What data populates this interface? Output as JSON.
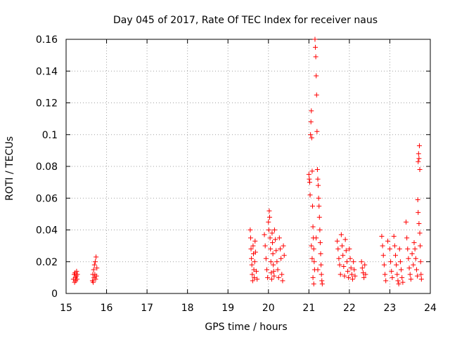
{
  "chart_data": {
    "type": "scatter",
    "title": "Day 045 of 2017, Rate Of TEC Index for receiver naus",
    "xlabel": "GPS time / hours",
    "ylabel": "ROTI / TECUs",
    "xlim": [
      15,
      24
    ],
    "ylim": [
      0,
      0.16
    ],
    "xticks": [
      "15",
      "16",
      "17",
      "18",
      "19",
      "20",
      "21",
      "22",
      "23",
      "24"
    ],
    "yticks": [
      "0",
      "0.02",
      "0.04",
      "0.06",
      "0.08",
      "0.1",
      "0.12",
      "0.14",
      "0.16"
    ],
    "grid": true,
    "marker": "+",
    "color": "#ff0000",
    "series": [
      {
        "name": "ROTI",
        "points": [
          [
            15.18,
            0.009
          ],
          [
            15.2,
            0.012
          ],
          [
            15.21,
            0.007
          ],
          [
            15.22,
            0.013
          ],
          [
            15.23,
            0.01
          ],
          [
            15.24,
            0.008
          ],
          [
            15.25,
            0.011
          ],
          [
            15.26,
            0.014
          ],
          [
            15.27,
            0.009
          ],
          [
            15.28,
            0.012
          ],
          [
            15.65,
            0.008
          ],
          [
            15.66,
            0.012
          ],
          [
            15.67,
            0.007
          ],
          [
            15.68,
            0.015
          ],
          [
            15.69,
            0.01
          ],
          [
            15.7,
            0.018
          ],
          [
            15.71,
            0.012
          ],
          [
            15.72,
            0.02
          ],
          [
            15.73,
            0.009
          ],
          [
            15.74,
            0.023
          ],
          [
            15.75,
            0.011
          ],
          [
            15.76,
            0.016
          ],
          [
            19.55,
            0.04
          ],
          [
            19.56,
            0.035
          ],
          [
            19.57,
            0.028
          ],
          [
            19.58,
            0.022
          ],
          [
            19.59,
            0.018
          ],
          [
            19.6,
            0.012
          ],
          [
            19.61,
            0.008
          ],
          [
            19.62,
            0.03
          ],
          [
            19.63,
            0.025
          ],
          [
            19.64,
            0.015
          ],
          [
            19.65,
            0.01
          ],
          [
            19.66,
            0.02
          ],
          [
            19.67,
            0.033
          ],
          [
            19.68,
            0.026
          ],
          [
            19.7,
            0.014
          ],
          [
            19.72,
            0.009
          ],
          [
            19.9,
            0.037
          ],
          [
            19.92,
            0.03
          ],
          [
            19.94,
            0.022
          ],
          [
            19.96,
            0.015
          ],
          [
            19.98,
            0.01
          ],
          [
            20.0,
            0.045
          ],
          [
            20.01,
            0.04
          ],
          [
            20.02,
            0.052
          ],
          [
            20.03,
            0.048
          ],
          [
            20.04,
            0.035
          ],
          [
            20.05,
            0.028
          ],
          [
            20.06,
            0.02
          ],
          [
            20.07,
            0.013
          ],
          [
            20.08,
            0.009
          ],
          [
            20.09,
            0.038
          ],
          [
            20.1,
            0.032
          ],
          [
            20.11,
            0.025
          ],
          [
            20.12,
            0.018
          ],
          [
            20.13,
            0.014
          ],
          [
            20.14,
            0.011
          ],
          [
            20.15,
            0.04
          ],
          [
            20.17,
            0.034
          ],
          [
            20.19,
            0.027
          ],
          [
            20.21,
            0.02
          ],
          [
            20.23,
            0.015
          ],
          [
            20.25,
            0.01
          ],
          [
            20.27,
            0.035
          ],
          [
            20.29,
            0.028
          ],
          [
            20.31,
            0.022
          ],
          [
            20.33,
            0.012
          ],
          [
            20.35,
            0.008
          ],
          [
            20.37,
            0.03
          ],
          [
            20.39,
            0.024
          ],
          [
            21.0,
            0.075
          ],
          [
            21.01,
            0.072
          ],
          [
            21.02,
            0.07
          ],
          [
            21.03,
            0.062
          ],
          [
            21.04,
            0.1
          ],
          [
            21.05,
            0.108
          ],
          [
            21.06,
            0.115
          ],
          [
            21.07,
            0.098
          ],
          [
            21.08,
            0.077
          ],
          [
            21.09,
            0.055
          ],
          [
            21.1,
            0.042
          ],
          [
            21.11,
            0.035
          ],
          [
            21.12,
            0.028
          ],
          [
            21.13,
            0.02
          ],
          [
            21.14,
            0.015
          ],
          [
            21.15,
            0.16
          ],
          [
            21.16,
            0.155
          ],
          [
            21.17,
            0.149
          ],
          [
            21.18,
            0.137
          ],
          [
            21.19,
            0.125
          ],
          [
            21.2,
            0.102
          ],
          [
            21.21,
            0.078
          ],
          [
            21.22,
            0.072
          ],
          [
            21.23,
            0.068
          ],
          [
            21.24,
            0.06
          ],
          [
            21.25,
            0.055
          ],
          [
            21.26,
            0.048
          ],
          [
            21.27,
            0.04
          ],
          [
            21.28,
            0.032
          ],
          [
            21.29,
            0.025
          ],
          [
            21.3,
            0.018
          ],
          [
            21.31,
            0.012
          ],
          [
            21.32,
            0.008
          ],
          [
            21.33,
            0.006
          ],
          [
            21.06,
            0.03
          ],
          [
            21.08,
            0.022
          ],
          [
            21.1,
            0.01
          ],
          [
            21.12,
            0.006
          ],
          [
            21.18,
            0.035
          ],
          [
            21.22,
            0.015
          ],
          [
            21.7,
            0.033
          ],
          [
            21.72,
            0.028
          ],
          [
            21.74,
            0.022
          ],
          [
            21.76,
            0.018
          ],
          [
            21.78,
            0.012
          ],
          [
            21.8,
            0.037
          ],
          [
            21.82,
            0.03
          ],
          [
            21.84,
            0.024
          ],
          [
            21.86,
            0.017
          ],
          [
            21.88,
            0.011
          ],
          [
            21.9,
            0.034
          ],
          [
            21.92,
            0.027
          ],
          [
            21.94,
            0.02
          ],
          [
            21.96,
            0.014
          ],
          [
            21.98,
            0.01
          ],
          [
            22.0,
            0.028
          ],
          [
            22.02,
            0.022
          ],
          [
            22.04,
            0.016
          ],
          [
            22.06,
            0.012
          ],
          [
            22.08,
            0.009
          ],
          [
            22.1,
            0.02
          ],
          [
            22.12,
            0.015
          ],
          [
            22.14,
            0.011
          ],
          [
            22.3,
            0.02
          ],
          [
            22.32,
            0.016
          ],
          [
            22.34,
            0.013
          ],
          [
            22.36,
            0.01
          ],
          [
            22.38,
            0.018
          ],
          [
            22.4,
            0.012
          ],
          [
            22.8,
            0.036
          ],
          [
            22.82,
            0.03
          ],
          [
            22.84,
            0.024
          ],
          [
            22.86,
            0.018
          ],
          [
            22.88,
            0.012
          ],
          [
            22.9,
            0.008
          ],
          [
            22.95,
            0.033
          ],
          [
            23.0,
            0.028
          ],
          [
            23.02,
            0.02
          ],
          [
            23.04,
            0.014
          ],
          [
            23.06,
            0.01
          ],
          [
            23.1,
            0.036
          ],
          [
            23.12,
            0.03
          ],
          [
            23.14,
            0.024
          ],
          [
            23.16,
            0.018
          ],
          [
            23.18,
            0.012
          ],
          [
            23.2,
            0.008
          ],
          [
            23.22,
            0.006
          ],
          [
            23.24,
            0.028
          ],
          [
            23.26,
            0.02
          ],
          [
            23.28,
            0.015
          ],
          [
            23.3,
            0.01
          ],
          [
            23.32,
            0.007
          ],
          [
            23.4,
            0.045
          ],
          [
            23.42,
            0.035
          ],
          [
            23.44,
            0.028
          ],
          [
            23.46,
            0.022
          ],
          [
            23.48,
            0.016
          ],
          [
            23.5,
            0.012
          ],
          [
            23.52,
            0.009
          ],
          [
            23.55,
            0.025
          ],
          [
            23.58,
            0.018
          ],
          [
            23.6,
            0.032
          ],
          [
            23.62,
            0.028
          ],
          [
            23.64,
            0.022
          ],
          [
            23.66,
            0.015
          ],
          [
            23.68,
            0.011
          ],
          [
            23.7,
            0.083
          ],
          [
            23.71,
            0.088
          ],
          [
            23.72,
            0.085
          ],
          [
            23.73,
            0.093
          ],
          [
            23.74,
            0.078
          ],
          [
            23.69,
            0.059
          ],
          [
            23.7,
            0.051
          ],
          [
            23.72,
            0.044
          ],
          [
            23.74,
            0.038
          ],
          [
            23.75,
            0.03
          ],
          [
            23.76,
            0.02
          ],
          [
            23.77,
            0.012
          ],
          [
            23.78,
            0.009
          ]
        ]
      }
    ]
  }
}
